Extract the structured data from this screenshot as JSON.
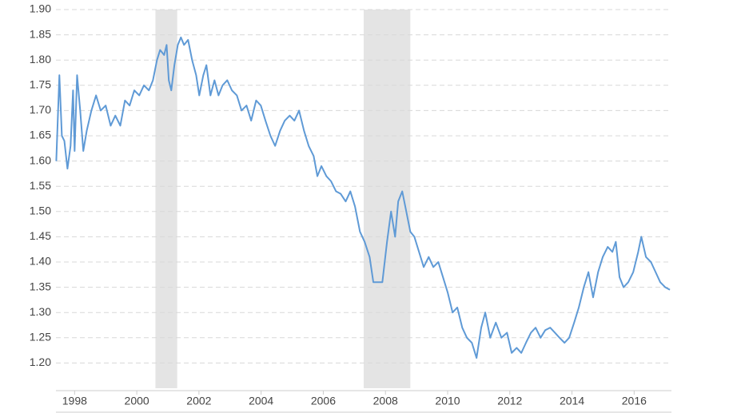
{
  "chart_data": {
    "type": "line",
    "color": "#5f9ad6",
    "shade_color": "#e4e4e4",
    "grid": true,
    "xlim": [
      1997.4,
      2017.2
    ],
    "xticks": [
      1998,
      2000,
      2002,
      2004,
      2006,
      2008,
      2010,
      2012,
      2014,
      2016
    ],
    "ylim": [
      1.15,
      1.9
    ],
    "yticks": [
      {
        "value": 1.2,
        "label": "1.20"
      },
      {
        "value": 1.25,
        "label": "1.25"
      },
      {
        "value": 1.3,
        "label": "1.30"
      },
      {
        "value": 1.35,
        "label": "1.35"
      },
      {
        "value": 1.4,
        "label": "1.40"
      },
      {
        "value": 1.45,
        "label": "1.45"
      },
      {
        "value": 1.5,
        "label": "1.50"
      },
      {
        "value": 1.55,
        "label": "1.55"
      },
      {
        "value": 1.6,
        "label": "1.60"
      },
      {
        "value": 1.65,
        "label": "1.65"
      },
      {
        "value": 1.7,
        "label": "1.70"
      },
      {
        "value": 1.75,
        "label": "1.75"
      },
      {
        "value": 1.8,
        "label": "1.80"
      },
      {
        "value": 1.85,
        "label": "1.85"
      },
      {
        "value": 1.9,
        "label": "1.90"
      }
    ],
    "shaded_ranges": [
      [
        2000.6,
        2001.3
      ],
      [
        2007.3,
        2008.8
      ]
    ],
    "x": [
      1997.41,
      1997.51,
      1997.59,
      1997.67,
      1997.77,
      1997.87,
      1997.95,
      1998.0,
      1998.08,
      1998.18,
      1998.28,
      1998.39,
      1998.54,
      1998.69,
      1998.84,
      1999.0,
      1999.16,
      1999.31,
      1999.47,
      1999.62,
      1999.77,
      1999.92,
      2000.08,
      2000.23,
      2000.39,
      2000.52,
      2000.65,
      2000.75,
      2000.88,
      2000.96,
      2001.03,
      2001.11,
      2001.21,
      2001.32,
      2001.42,
      2001.52,
      2001.65,
      2001.78,
      2001.91,
      2002.01,
      2002.14,
      2002.24,
      2002.37,
      2002.5,
      2002.63,
      2002.76,
      2002.91,
      2003.06,
      2003.22,
      2003.37,
      2003.53,
      2003.68,
      2003.84,
      2003.99,
      2004.14,
      2004.3,
      2004.45,
      2004.61,
      2004.76,
      2004.92,
      2005.07,
      2005.22,
      2005.38,
      2005.53,
      2005.69,
      2005.81,
      2005.94,
      2006.1,
      2006.25,
      2006.41,
      2006.56,
      2006.72,
      2006.87,
      2007.02,
      2007.18,
      2007.33,
      2007.49,
      2007.61,
      2007.74,
      2007.9,
      2008.05,
      2008.18,
      2008.31,
      2008.41,
      2008.54,
      2008.67,
      2008.8,
      2008.93,
      2009.08,
      2009.23,
      2009.39,
      2009.54,
      2009.7,
      2009.85,
      2010.0,
      2010.16,
      2010.31,
      2010.47,
      2010.62,
      2010.78,
      2010.93,
      2011.08,
      2011.21,
      2011.37,
      2011.55,
      2011.73,
      2011.91,
      2012.06,
      2012.22,
      2012.37,
      2012.52,
      2012.68,
      2012.83,
      2012.99,
      2013.14,
      2013.3,
      2013.45,
      2013.6,
      2013.76,
      2013.91,
      2014.07,
      2014.22,
      2014.38,
      2014.53,
      2014.68,
      2014.84,
      2014.99,
      2015.15,
      2015.3,
      2015.41,
      2015.53,
      2015.66,
      2015.81,
      2015.97,
      2016.13,
      2016.23,
      2016.38,
      2016.54,
      2016.69,
      2016.84,
      2017.0,
      2017.15
    ],
    "values": [
      1.6,
      1.77,
      1.65,
      1.64,
      1.585,
      1.63,
      1.74,
      1.62,
      1.77,
      1.7,
      1.62,
      1.66,
      1.7,
      1.73,
      1.7,
      1.71,
      1.67,
      1.69,
      1.67,
      1.72,
      1.71,
      1.74,
      1.73,
      1.75,
      1.74,
      1.76,
      1.8,
      1.82,
      1.81,
      1.83,
      1.76,
      1.74,
      1.79,
      1.83,
      1.845,
      1.83,
      1.84,
      1.8,
      1.77,
      1.73,
      1.77,
      1.79,
      1.73,
      1.76,
      1.73,
      1.75,
      1.76,
      1.74,
      1.73,
      1.7,
      1.71,
      1.68,
      1.72,
      1.71,
      1.68,
      1.65,
      1.63,
      1.66,
      1.68,
      1.69,
      1.68,
      1.7,
      1.66,
      1.63,
      1.61,
      1.57,
      1.59,
      1.57,
      1.56,
      1.54,
      1.535,
      1.52,
      1.54,
      1.51,
      1.46,
      1.44,
      1.41,
      1.36,
      1.36,
      1.36,
      1.44,
      1.5,
      1.45,
      1.52,
      1.54,
      1.5,
      1.46,
      1.45,
      1.42,
      1.39,
      1.41,
      1.39,
      1.4,
      1.37,
      1.34,
      1.3,
      1.31,
      1.27,
      1.25,
      1.24,
      1.21,
      1.27,
      1.3,
      1.25,
      1.28,
      1.25,
      1.26,
      1.22,
      1.23,
      1.22,
      1.24,
      1.26,
      1.27,
      1.25,
      1.265,
      1.27,
      1.26,
      1.25,
      1.24,
      1.25,
      1.28,
      1.31,
      1.35,
      1.38,
      1.33,
      1.38,
      1.41,
      1.43,
      1.42,
      1.44,
      1.37,
      1.35,
      1.36,
      1.38,
      1.42,
      1.45,
      1.41,
      1.4,
      1.38,
      1.36,
      1.35,
      1.345
    ]
  }
}
